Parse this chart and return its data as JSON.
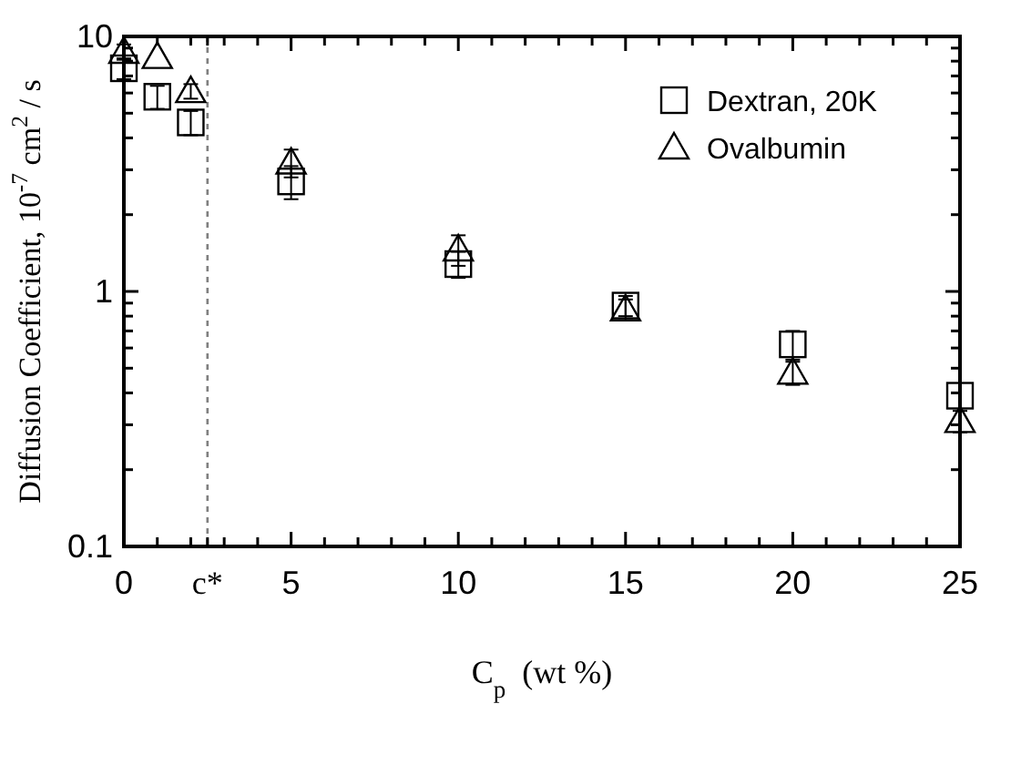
{
  "chart_data": {
    "type": "scatter",
    "xlabel": "C$_{p}$  (wt %)",
    "ylabel": "Diffusion Coefficient, 10$^{-7}$ cm$^{2}$ / s",
    "x": [
      0,
      1,
      2,
      5,
      10,
      15,
      20,
      25
    ],
    "series": [
      {
        "name": "Dextran, 20K",
        "color": "#000000",
        "marker": "square",
        "values": [
          7.5,
          5.8,
          4.6,
          2.7,
          1.28,
          0.88,
          0.62,
          0.39
        ],
        "errors": [
          0.7,
          0.6,
          0.5,
          0.4,
          0.15,
          0.08,
          0.08,
          null
        ]
      },
      {
        "name": "Ovalbumin",
        "color": "#000000",
        "marker": "triangle",
        "values": [
          8.7,
          8.3,
          6.1,
          3.2,
          1.46,
          0.85,
          0.48,
          0.31
        ],
        "errors": [
          0.6,
          null,
          0.4,
          0.4,
          0.2,
          0.08,
          0.05,
          0.03
        ]
      }
    ],
    "log": "y",
    "xlim": [
      0,
      25
    ],
    "ylim": [
      0.1,
      10
    ],
    "xticks": [
      0,
      {
        "value": 1,
        "label": null
      },
      {
        "value": 2,
        "label": null
      },
      {
        "value": 2.5,
        "label": "c*"
      },
      {
        "value": 3,
        "label": null
      },
      {
        "value": 4,
        "label": null
      },
      5,
      {
        "value": 6,
        "label": null
      },
      {
        "value": 7,
        "label": null
      },
      {
        "value": 8,
        "label": null
      },
      {
        "value": 9,
        "label": null
      },
      10,
      {
        "value": 11,
        "label": null
      },
      {
        "value": 12,
        "label": null
      },
      {
        "value": 13,
        "label": null
      },
      {
        "value": 14,
        "label": null
      },
      15,
      {
        "value": 16,
        "label": null
      },
      {
        "value": 17,
        "label": null
      },
      {
        "value": 18,
        "label": null
      },
      {
        "value": 19,
        "label": null
      },
      20,
      {
        "value": 21,
        "label": null
      },
      {
        "value": 22,
        "label": null
      },
      {
        "value": 23,
        "label": null
      },
      {
        "value": 24,
        "label": null
      },
      25
    ],
    "yticks": [
      0.1,
      {
        "value": 0.2,
        "label": null
      },
      {
        "value": 0.3,
        "label": null
      },
      {
        "value": 0.4,
        "label": null
      },
      {
        "value": 0.5,
        "label": null
      },
      {
        "value": 0.6,
        "label": null
      },
      {
        "value": 0.7,
        "label": null
      },
      {
        "value": 0.8,
        "label": null
      },
      {
        "value": 0.9,
        "label": null
      },
      1,
      {
        "value": 2,
        "label": null
      },
      {
        "value": 3,
        "label": null
      },
      {
        "value": 4,
        "label": null
      },
      {
        "value": 5,
        "label": null
      },
      {
        "value": 6,
        "label": null
      },
      {
        "value": 7,
        "label": null
      },
      {
        "value": 8,
        "label": null
      },
      {
        "value": 9,
        "label": null
      },
      10
    ],
    "ref_lines": [
      {
        "axis": "x",
        "value": 2.5,
        "label": null,
        "color": "#808080",
        "line_style": "dotted"
      }
    ],
    "legend": "top right",
    "grid": false
  }
}
